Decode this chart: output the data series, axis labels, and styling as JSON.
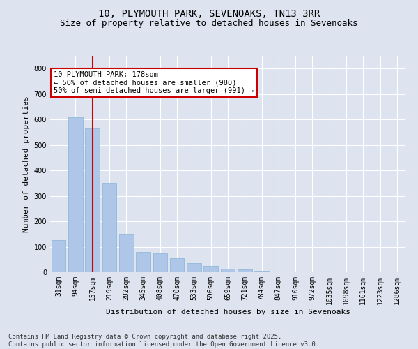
{
  "title1": "10, PLYMOUTH PARK, SEVENOAKS, TN13 3RR",
  "title2": "Size of property relative to detached houses in Sevenoaks",
  "xlabel": "Distribution of detached houses by size in Sevenoaks",
  "ylabel": "Number of detached properties",
  "categories": [
    "31sqm",
    "94sqm",
    "157sqm",
    "219sqm",
    "282sqm",
    "345sqm",
    "408sqm",
    "470sqm",
    "533sqm",
    "596sqm",
    "659sqm",
    "721sqm",
    "784sqm",
    "847sqm",
    "910sqm",
    "972sqm",
    "1035sqm",
    "1098sqm",
    "1161sqm",
    "1223sqm",
    "1286sqm"
  ],
  "values": [
    125,
    610,
    565,
    350,
    150,
    80,
    75,
    55,
    35,
    25,
    15,
    10,
    5,
    0,
    0,
    0,
    0,
    0,
    0,
    0,
    0
  ],
  "bar_color": "#aec6e8",
  "bar_edge_color": "#8ab4d8",
  "vline_x_index": 2,
  "vline_color": "#cc0000",
  "annotation_text": "10 PLYMOUTH PARK: 178sqm\n← 50% of detached houses are smaller (980)\n50% of semi-detached houses are larger (991) →",
  "annotation_box_color": "#ffffff",
  "annotation_box_edge": "#cc0000",
  "background_color": "#dde4f0",
  "plot_bg_color": "#dde4f0",
  "ylim": [
    0,
    850
  ],
  "yticks": [
    0,
    100,
    200,
    300,
    400,
    500,
    600,
    700,
    800
  ],
  "grid_color": "#ffffff",
  "footer1": "Contains HM Land Registry data © Crown copyright and database right 2025.",
  "footer2": "Contains public sector information licensed under the Open Government Licence v3.0.",
  "title_fontsize": 10,
  "subtitle_fontsize": 9,
  "axis_label_fontsize": 8,
  "tick_fontsize": 7,
  "annotation_fontsize": 7.5,
  "footer_fontsize": 6.5
}
